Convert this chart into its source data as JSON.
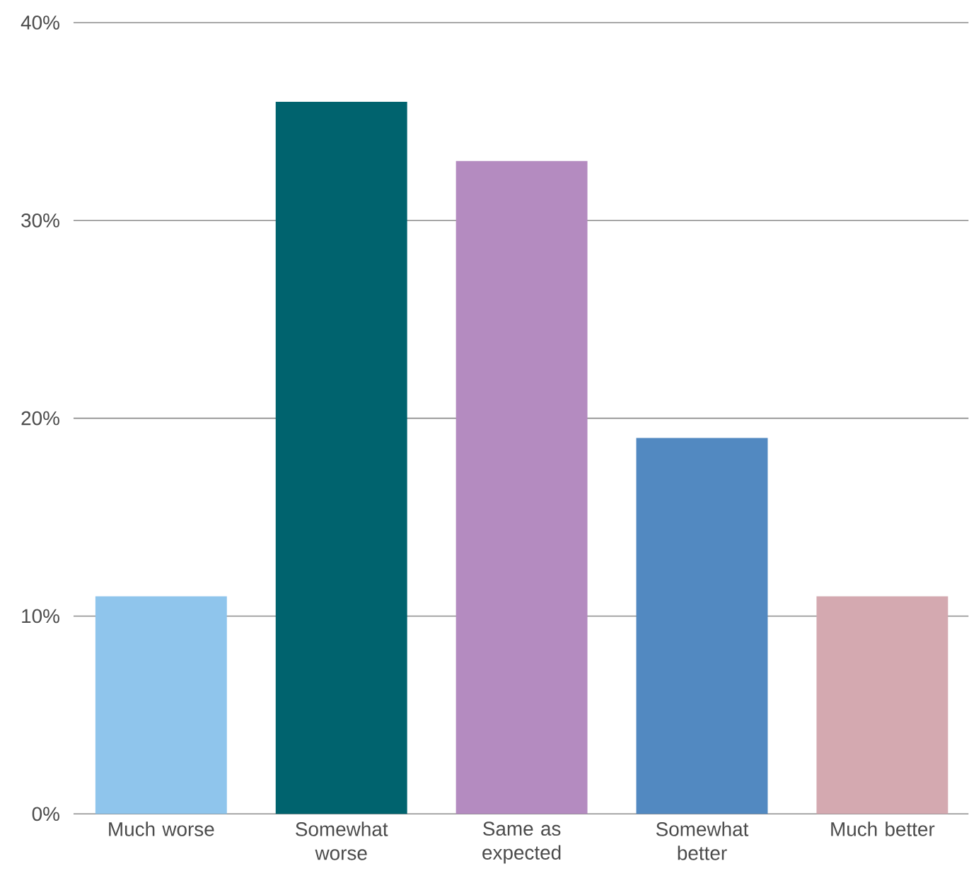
{
  "chart_data": {
    "type": "bar",
    "categories": [
      "Much worse",
      "Somewhat worse",
      "Same as expected",
      "Somewhat better",
      "Much better"
    ],
    "values": [
      11,
      36,
      33,
      19,
      11
    ],
    "colors": [
      "#8fc5ec",
      "#00636e",
      "#b48bc0",
      "#5289c1",
      "#d4a9b0"
    ],
    "ylim": [
      0,
      40
    ],
    "yticks": [
      {
        "value": 0,
        "label": "0%"
      },
      {
        "value": 10,
        "label": "10%"
      },
      {
        "value": 20,
        "label": "20%"
      },
      {
        "value": 30,
        "label": "30%"
      },
      {
        "value": 40,
        "label": "40%"
      }
    ],
    "grid": "y"
  }
}
